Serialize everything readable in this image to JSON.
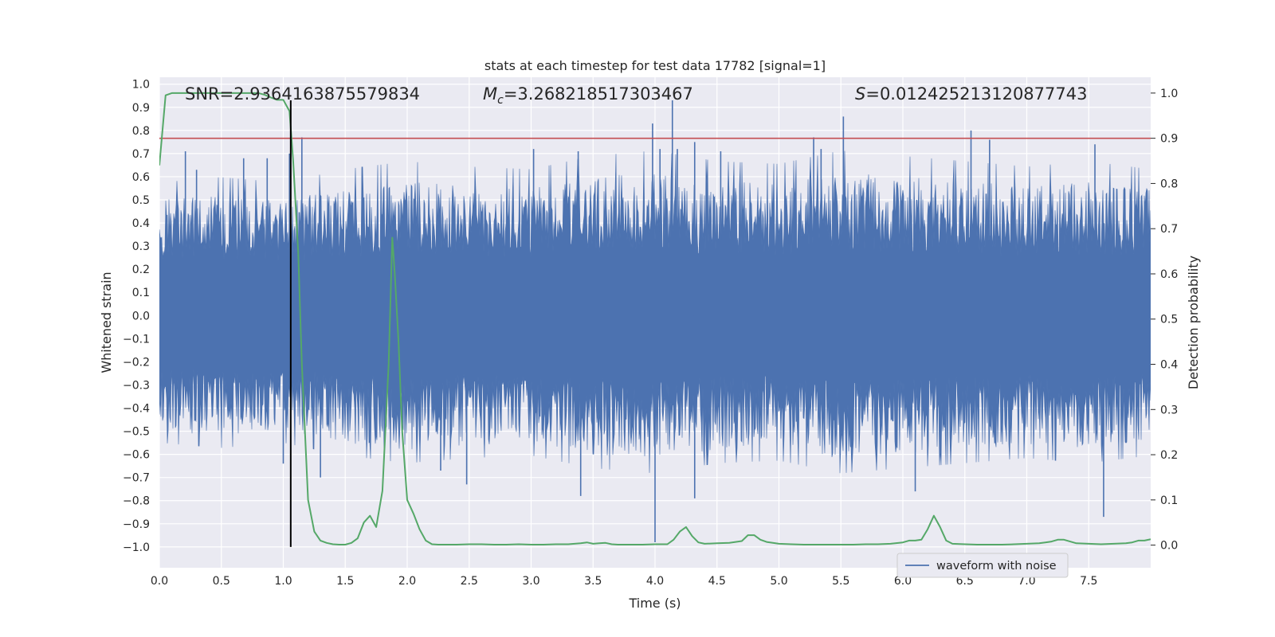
{
  "chart_data": {
    "type": "line",
    "title": "stats at each timestep for test data 17782 [signal=1]",
    "xlabel": "Time (s)",
    "ylabel_left": "Whitened strain",
    "ylabel_right": "Detection probability",
    "xlim": [
      0.0,
      8.0
    ],
    "ylim_left": [
      -1.09,
      1.03
    ],
    "ylim_right": [
      -0.05,
      1.035
    ],
    "x_ticks": [
      "0.0",
      "0.5",
      "1.0",
      "1.5",
      "2.0",
      "2.5",
      "3.0",
      "3.5",
      "4.0",
      "4.5",
      "5.0",
      "5.5",
      "6.0",
      "6.5",
      "7.0",
      "7.5"
    ],
    "y_ticks_left": [
      "1.0",
      "0.9",
      "0.8",
      "0.7",
      "0.6",
      "0.5",
      "0.4",
      "0.3",
      "0.2",
      "0.1",
      "0.0",
      "−0.1",
      "−0.2",
      "−0.3",
      "−0.4",
      "−0.5",
      "−0.6",
      "−0.7",
      "−0.8",
      "−0.9",
      "−1.0"
    ],
    "y_ticks_right": [
      "1.0",
      "0.9",
      "0.8",
      "0.7",
      "0.6",
      "0.5",
      "0.4",
      "0.3",
      "0.2",
      "0.1",
      "0.0"
    ],
    "grid": true,
    "legend_position": "lower-right",
    "annotations": {
      "snr": "SNR=2.9364163875579834",
      "mc_symbol": "M",
      "mc_sub": "c",
      "mc_value": "=3.268218517303467",
      "s_symbol": "S",
      "s_value": "=0.012425213120877743"
    },
    "series": [
      {
        "name": "waveform with noise",
        "axis": "left",
        "color": "#4c72b0",
        "kind": "noise-band",
        "envelope_t": [
          0.0,
          0.5,
          1.0,
          1.5,
          2.0,
          2.5,
          3.0,
          3.5,
          4.0,
          4.5,
          5.0,
          5.5,
          6.0,
          6.5,
          7.0,
          7.5,
          8.0
        ],
        "envelope_amp": [
          0.5,
          0.52,
          0.5,
          0.55,
          0.58,
          0.56,
          0.55,
          0.6,
          0.62,
          0.58,
          0.57,
          0.62,
          0.6,
          0.58,
          0.56,
          0.58,
          0.55
        ],
        "spikes": [
          {
            "t": 0.21,
            "v": 0.71
          },
          {
            "t": 0.3,
            "v": 0.63
          },
          {
            "t": 0.68,
            "v": 0.68
          },
          {
            "t": 0.87,
            "v": 0.68
          },
          {
            "t": 1.0,
            "v": -0.64
          },
          {
            "t": 1.05,
            "v": 0.7
          },
          {
            "t": 1.15,
            "v": 0.77
          },
          {
            "t": 1.3,
            "v": -0.7
          },
          {
            "t": 2.27,
            "v": -0.67
          },
          {
            "t": 2.48,
            "v": -0.73
          },
          {
            "t": 3.02,
            "v": 0.72
          },
          {
            "t": 3.38,
            "v": 0.71
          },
          {
            "t": 3.4,
            "v": -0.78
          },
          {
            "t": 3.98,
            "v": 0.83
          },
          {
            "t": 4.0,
            "v": -0.98
          },
          {
            "t": 4.04,
            "v": 0.72
          },
          {
            "t": 4.14,
            "v": 0.93
          },
          {
            "t": 4.18,
            "v": 0.72
          },
          {
            "t": 4.32,
            "v": 0.75
          },
          {
            "t": 4.32,
            "v": -0.79
          },
          {
            "t": 4.53,
            "v": 0.71
          },
          {
            "t": 5.28,
            "v": 0.77
          },
          {
            "t": 5.34,
            "v": 0.72
          },
          {
            "t": 5.52,
            "v": 0.86
          },
          {
            "t": 6.1,
            "v": -0.76
          },
          {
            "t": 6.55,
            "v": 0.8
          },
          {
            "t": 6.7,
            "v": 0.76
          },
          {
            "t": 7.55,
            "v": 0.74
          },
          {
            "t": 7.62,
            "v": -0.87
          }
        ]
      },
      {
        "name": "",
        "axis": "right",
        "color": "#55a868",
        "kind": "line",
        "x": [
          0.0,
          0.05,
          0.1,
          0.2,
          0.3,
          0.4,
          0.5,
          0.6,
          0.7,
          0.8,
          0.85,
          0.9,
          0.95,
          1.0,
          1.05,
          1.08,
          1.12,
          1.15,
          1.18,
          1.2,
          1.25,
          1.3,
          1.35,
          1.4,
          1.45,
          1.5,
          1.55,
          1.6,
          1.65,
          1.7,
          1.75,
          1.8,
          1.85,
          1.88,
          1.9,
          1.93,
          1.96,
          2.0,
          2.05,
          2.1,
          2.15,
          2.2,
          2.25,
          2.3,
          2.4,
          2.5,
          2.6,
          2.7,
          2.8,
          2.9,
          3.0,
          3.1,
          3.2,
          3.3,
          3.4,
          3.45,
          3.5,
          3.55,
          3.6,
          3.65,
          3.7,
          3.8,
          3.9,
          4.0,
          4.1,
          4.15,
          4.2,
          4.25,
          4.3,
          4.35,
          4.4,
          4.5,
          4.6,
          4.7,
          4.75,
          4.8,
          4.85,
          4.9,
          5.0,
          5.1,
          5.2,
          5.3,
          5.4,
          5.5,
          5.6,
          5.7,
          5.8,
          5.9,
          6.0,
          6.05,
          6.1,
          6.15,
          6.2,
          6.25,
          6.3,
          6.35,
          6.4,
          6.5,
          6.6,
          6.7,
          6.8,
          6.9,
          7.0,
          7.1,
          7.15,
          7.2,
          7.25,
          7.3,
          7.35,
          7.4,
          7.5,
          7.6,
          7.7,
          7.8,
          7.85,
          7.9,
          7.95,
          8.0
        ],
        "y": [
          0.84,
          0.995,
          1.0,
          1.0,
          1.0,
          1.0,
          1.0,
          1.0,
          1.0,
          1.0,
          0.996,
          0.99,
          0.985,
          0.985,
          0.96,
          0.85,
          0.65,
          0.4,
          0.22,
          0.1,
          0.03,
          0.01,
          0.005,
          0.002,
          0.001,
          0.001,
          0.005,
          0.015,
          0.05,
          0.065,
          0.04,
          0.12,
          0.4,
          0.68,
          0.6,
          0.45,
          0.25,
          0.1,
          0.07,
          0.035,
          0.01,
          0.002,
          0.001,
          0.001,
          0.001,
          0.002,
          0.002,
          0.001,
          0.001,
          0.002,
          0.001,
          0.001,
          0.002,
          0.002,
          0.004,
          0.006,
          0.003,
          0.004,
          0.005,
          0.002,
          0.001,
          0.001,
          0.001,
          0.002,
          0.002,
          0.012,
          0.03,
          0.04,
          0.02,
          0.006,
          0.003,
          0.004,
          0.005,
          0.009,
          0.022,
          0.022,
          0.012,
          0.007,
          0.003,
          0.002,
          0.001,
          0.001,
          0.001,
          0.001,
          0.001,
          0.002,
          0.002,
          0.003,
          0.006,
          0.01,
          0.01,
          0.012,
          0.035,
          0.065,
          0.04,
          0.01,
          0.003,
          0.002,
          0.001,
          0.001,
          0.001,
          0.002,
          0.003,
          0.004,
          0.006,
          0.008,
          0.012,
          0.012,
          0.008,
          0.004,
          0.003,
          0.002,
          0.003,
          0.004,
          0.006,
          0.01,
          0.01,
          0.013
        ]
      },
      {
        "name": "",
        "axis": "right",
        "color": "#c44e52",
        "kind": "hline",
        "y": 0.9
      },
      {
        "name": "",
        "axis": "left",
        "color": "#000000",
        "kind": "vline",
        "x": 1.06,
        "y_range": [
          -1.0,
          0.93
        ]
      }
    ]
  }
}
